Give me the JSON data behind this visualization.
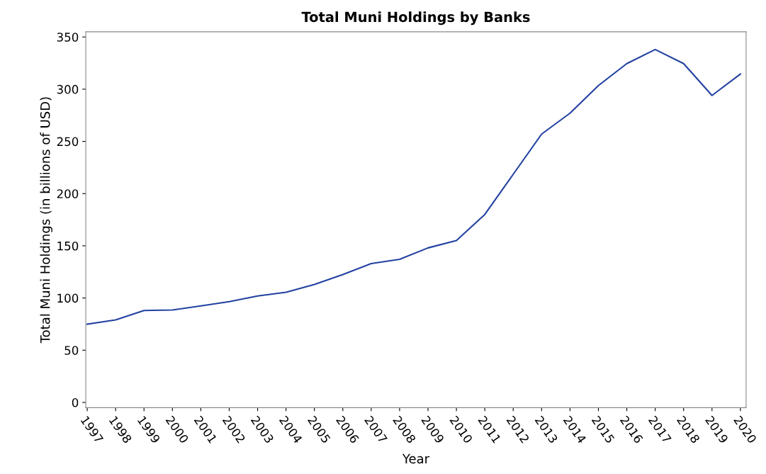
{
  "chart_data": {
    "type": "line",
    "title": "Total Muni Holdings by Banks",
    "xlabel": "Year",
    "ylabel": "Total Muni Holdings (in billions of USD)",
    "categories": [
      "1997",
      "1998",
      "1999",
      "2000",
      "2001",
      "2002",
      "2003",
      "2004",
      "2005",
      "2006",
      "2007",
      "2008",
      "2009",
      "2010",
      "2011",
      "2012",
      "2013",
      "2014",
      "2015",
      "2016",
      "2017",
      "2018",
      "2019",
      "2020"
    ],
    "series": [
      {
        "color": "#2140a0",
        "values": [
          75,
          79,
          88,
          88.5,
          92.5,
          96.5,
          102,
          105.5,
          113,
          122.5,
          133,
          137,
          148,
          155,
          180,
          218.5,
          257,
          277,
          303.5,
          324.5,
          338,
          324.5,
          294,
          314.5
        ]
      }
    ],
    "ylim": [
      -5,
      355
    ],
    "yticks": [
      0,
      50,
      100,
      150,
      200,
      250,
      300,
      350
    ],
    "grid": false,
    "marker": "none",
    "line_style": "solid"
  }
}
